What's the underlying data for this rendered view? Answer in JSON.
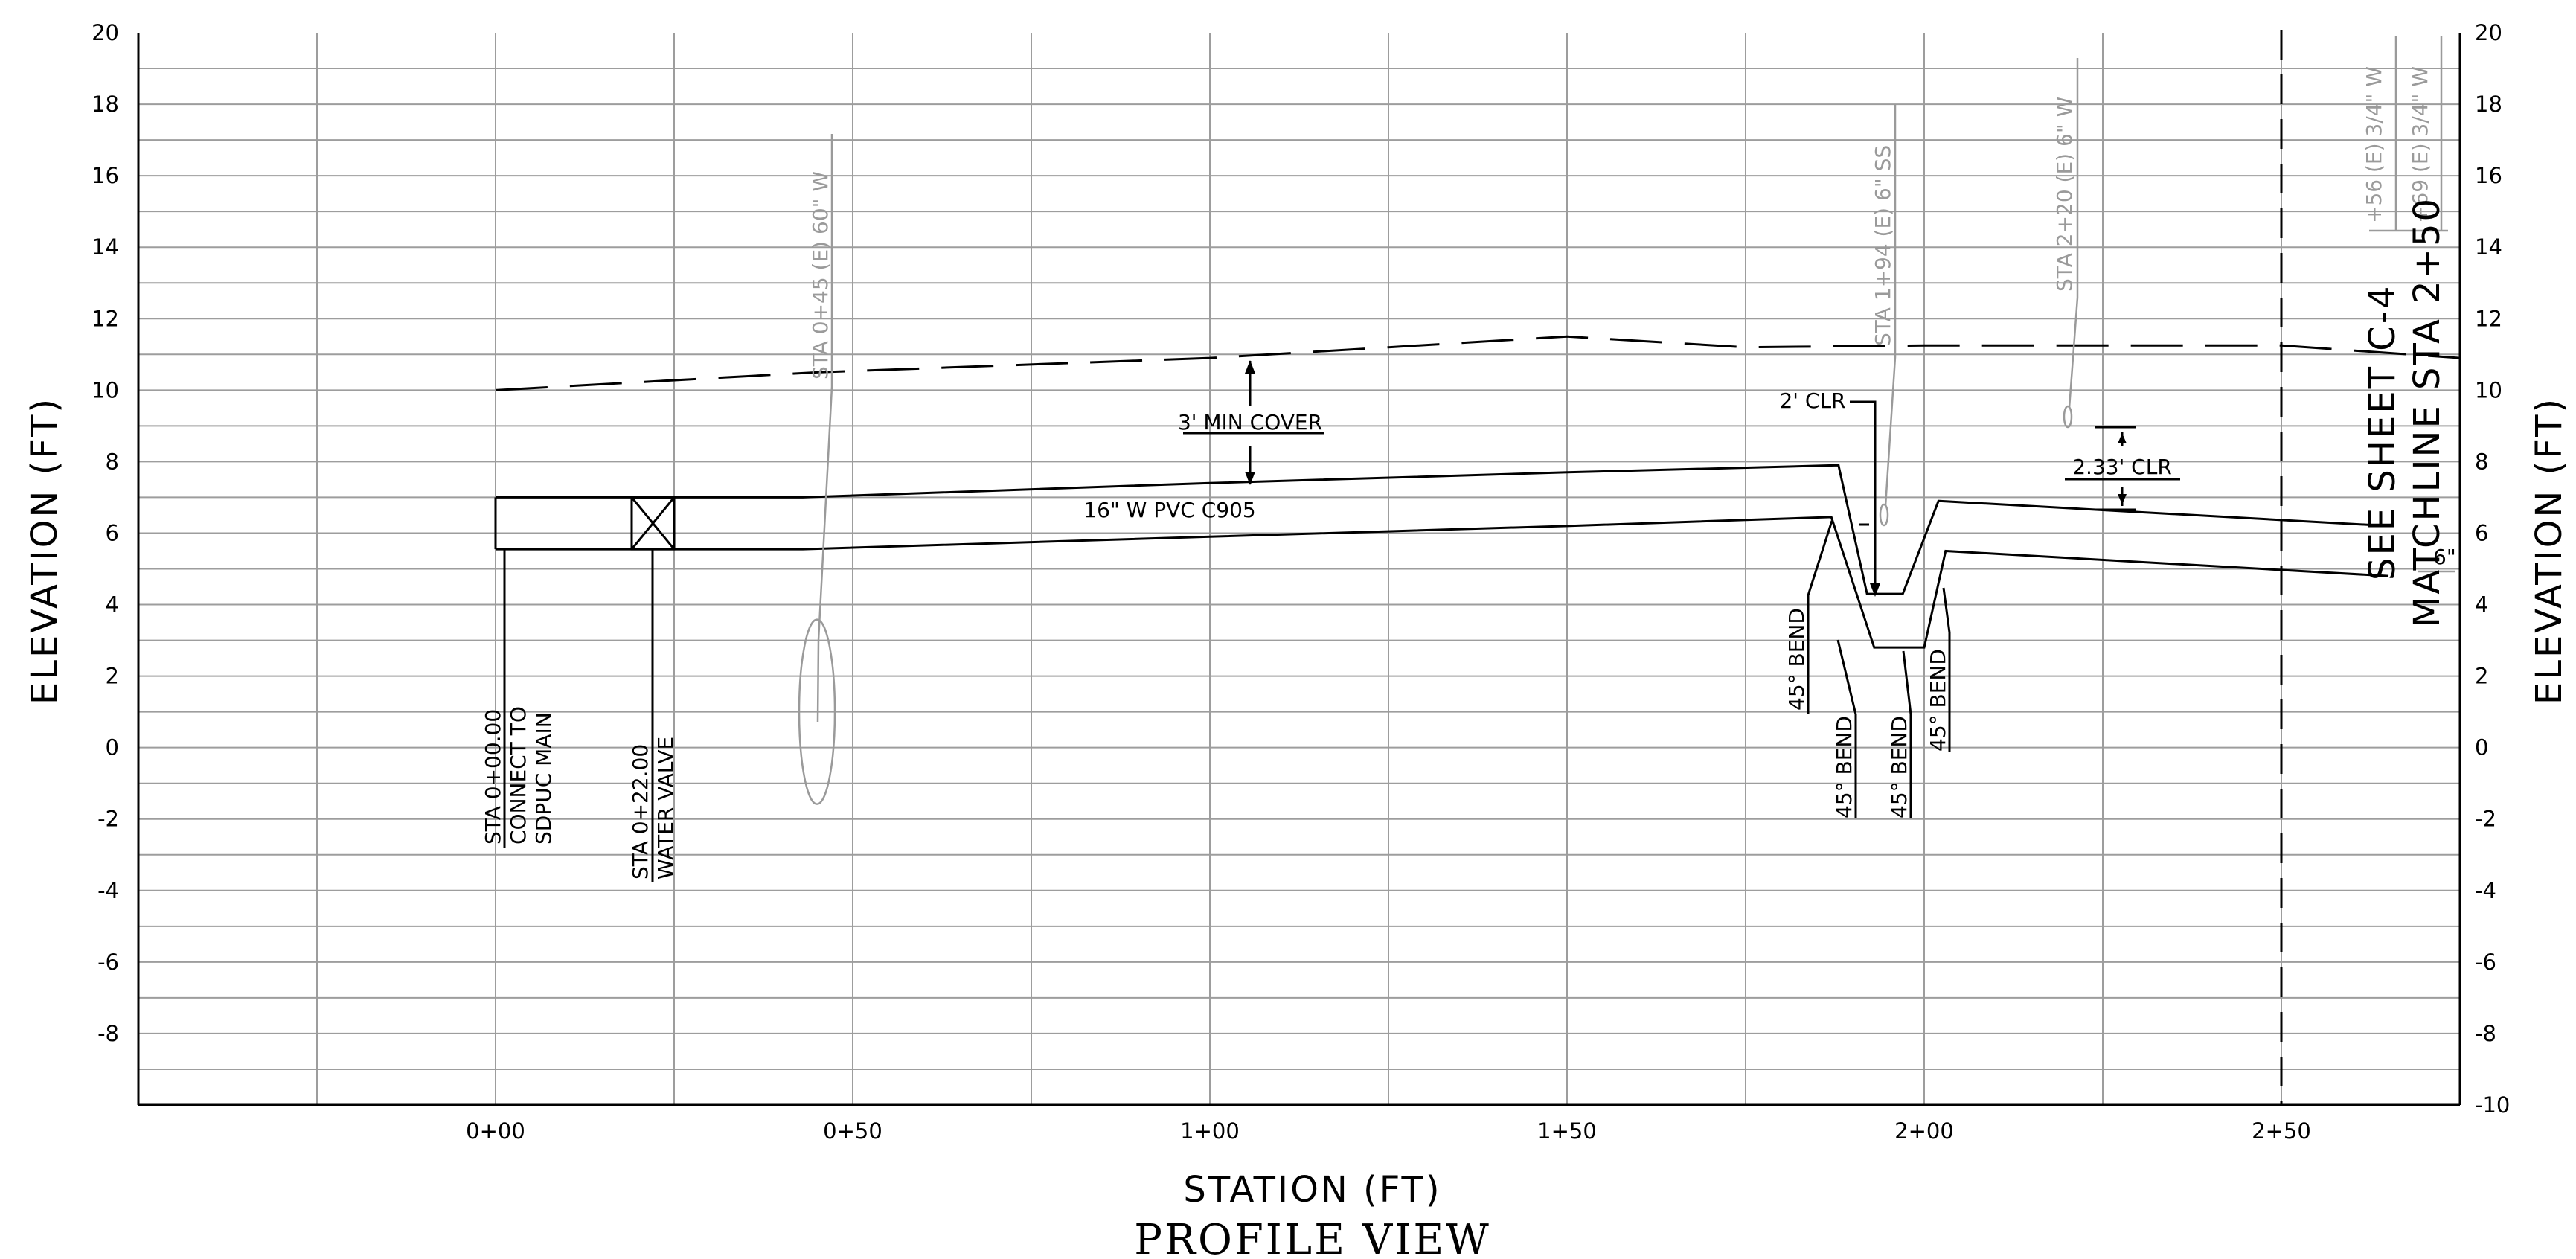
{
  "chart_data": {
    "type": "line",
    "title": "PROFILE VIEW",
    "xlabel": "STATION (FT)",
    "ylabel_left": "ELEVATION (FT)",
    "ylabel_right": "ELEVATION (FT)",
    "xlim": [
      -50,
      275
    ],
    "ylim": [
      -10,
      20
    ],
    "x_tick_values": [
      0,
      50,
      100,
      150,
      200,
      250
    ],
    "x_tick_labels": [
      "0+00",
      "0+50",
      "1+00",
      "1+50",
      "2+00",
      "2+50"
    ],
    "x_grid_values": [
      -25,
      0,
      25,
      50,
      75,
      100,
      125,
      150,
      175,
      200,
      225,
      250
    ],
    "y_tick_values": [
      -8,
      -6,
      -4,
      -2,
      0,
      2,
      4,
      6,
      8,
      10,
      12,
      14,
      16,
      18,
      20
    ],
    "y_tick_labels": [
      "-8",
      "-6",
      "-4",
      "-2",
      "0",
      "2",
      "4",
      "6",
      "8",
      "10",
      "12",
      "14",
      "16",
      "18",
      "20"
    ],
    "y_right_tick_values": [
      -10,
      -8,
      -6,
      -4,
      -2,
      0,
      2,
      4,
      6,
      8,
      10,
      12,
      14,
      16,
      18,
      20
    ],
    "y_right_tick_labels": [
      "-10",
      "-8",
      "-6",
      "-4",
      "-2",
      "0",
      "2",
      "4",
      "6",
      "8",
      "10",
      "12",
      "14",
      "16",
      "18",
      "20"
    ],
    "grid": true,
    "matchline_station": 250,
    "series": [
      {
        "key": "existing-ground",
        "x": [
          0,
          45,
          100,
          125,
          150,
          175,
          200,
          225,
          250,
          275
        ],
        "y": [
          10,
          10.5,
          10.9,
          11.2,
          11.5,
          11.2,
          11.25,
          11.25,
          11.25,
          10.9
        ]
      },
      {
        "key": "pipe-top",
        "x": [
          0,
          43,
          100,
          150,
          188,
          192,
          197,
          202,
          265
        ],
        "y": [
          7,
          7,
          7.4,
          7.7,
          7.9,
          4.3,
          4.3,
          6.9,
          6.2
        ]
      },
      {
        "key": "pipe-bottom",
        "x": [
          0,
          43,
          100,
          150,
          187,
          193,
          200,
          203,
          265
        ],
        "y": [
          5.55,
          5.55,
          5.9,
          6.2,
          6.45,
          2.8,
          2.8,
          5.5,
          4.8
        ]
      }
    ],
    "annotations": [
      {
        "key": "connect",
        "lines": [
          "STA 0+00.00",
          "CONNECT TO",
          "SDPUC MAIN"
        ]
      },
      {
        "key": "valve",
        "lines": [
          "STA 0+22.00",
          "WATER VALVE"
        ]
      },
      {
        "key": "util-045",
        "text": "STA 0+45 (E) 60\" W"
      },
      {
        "key": "util-194",
        "text": "STA 1+94 (E) 6\" SS"
      },
      {
        "key": "util-220",
        "text": "STA 2+20 (E) 6\" W"
      },
      {
        "key": "util-256",
        "text": "+56 (E) 3/4\" W"
      },
      {
        "key": "util-269",
        "text": "+69 (E) 3/4\" W"
      },
      {
        "key": "cover",
        "text": "3' MIN COVER"
      },
      {
        "key": "pipe",
        "text": "16\" W PVC C905"
      },
      {
        "key": "clr2",
        "text": "2' CLR"
      },
      {
        "key": "clr233",
        "text": "2.33' CLR"
      },
      {
        "key": "bend1",
        "text": "45° BEND"
      },
      {
        "key": "bend2",
        "text": "45° BEND"
      },
      {
        "key": "bend3",
        "text": "45° BEND"
      },
      {
        "key": "bend4",
        "text": "45° BEND"
      },
      {
        "key": "six",
        "text": "6\""
      },
      {
        "key": "sheet",
        "text": "SEE SHEET C-4"
      },
      {
        "key": "matchline",
        "text": "MATCHLINE STA 2+50"
      }
    ]
  }
}
